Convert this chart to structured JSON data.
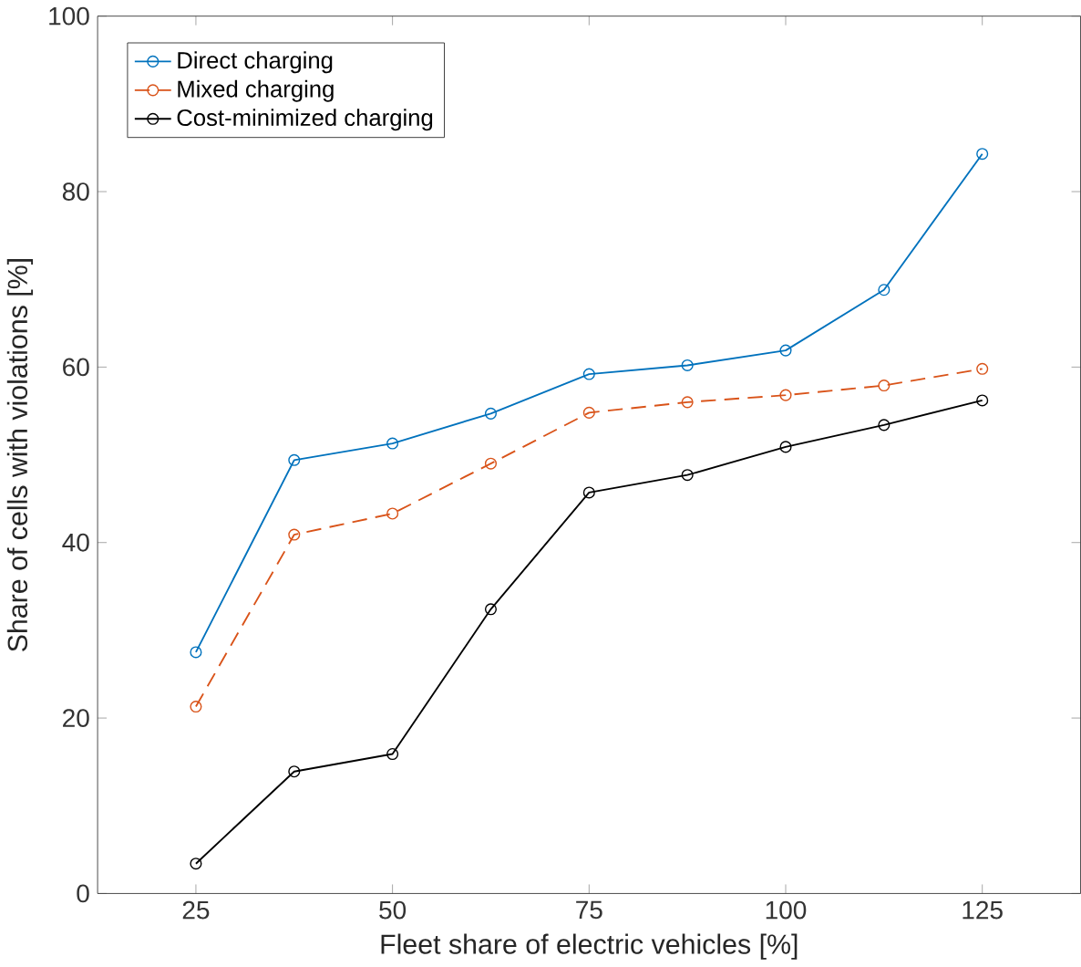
{
  "chart_data": {
    "type": "line",
    "xlabel": "Fleet share of electric vehicles [%]",
    "ylabel": "Share of cells with violations [%]",
    "x": [
      25,
      37.5,
      50,
      62.5,
      75,
      87.5,
      100,
      112.5,
      125
    ],
    "series": [
      {
        "name": "Direct charging",
        "color": "#0072bd",
        "line_style": "solid",
        "values": [
          27.5,
          49.4,
          51.3,
          54.7,
          59.2,
          60.2,
          61.9,
          68.8,
          84.3
        ]
      },
      {
        "name": "Mixed charging",
        "color": "#d95319",
        "line_style": "dashed",
        "values": [
          21.3,
          40.9,
          43.3,
          49.0,
          54.8,
          56.0,
          56.8,
          57.9,
          59.8
        ]
      },
      {
        "name": "Cost-minimized charging",
        "color": "#000000",
        "line_style": "solid",
        "values": [
          3.4,
          13.9,
          15.9,
          32.4,
          45.7,
          47.7,
          50.9,
          53.4,
          56.2
        ]
      }
    ],
    "xlim": [
      12.5,
      137.5
    ],
    "ylim": [
      0,
      100
    ],
    "xticks": [
      25,
      50,
      75,
      100,
      125
    ],
    "yticks": [
      0,
      20,
      40,
      60,
      80,
      100
    ],
    "marker": "circle",
    "legend": "top left",
    "grid": false
  }
}
